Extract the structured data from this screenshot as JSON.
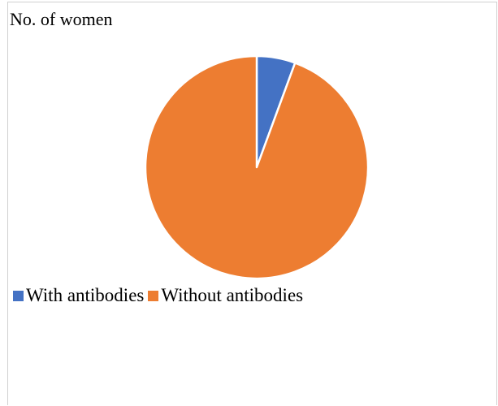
{
  "chart_data": {
    "type": "pie",
    "title": "No. of women",
    "categories": [
      "With antibodies",
      "Without antibodies"
    ],
    "values": [
      5.6,
      94.4
    ],
    "colors": [
      "#4472C4",
      "#ED7D31"
    ],
    "legend_position": "bottom-left",
    "grid": false
  }
}
